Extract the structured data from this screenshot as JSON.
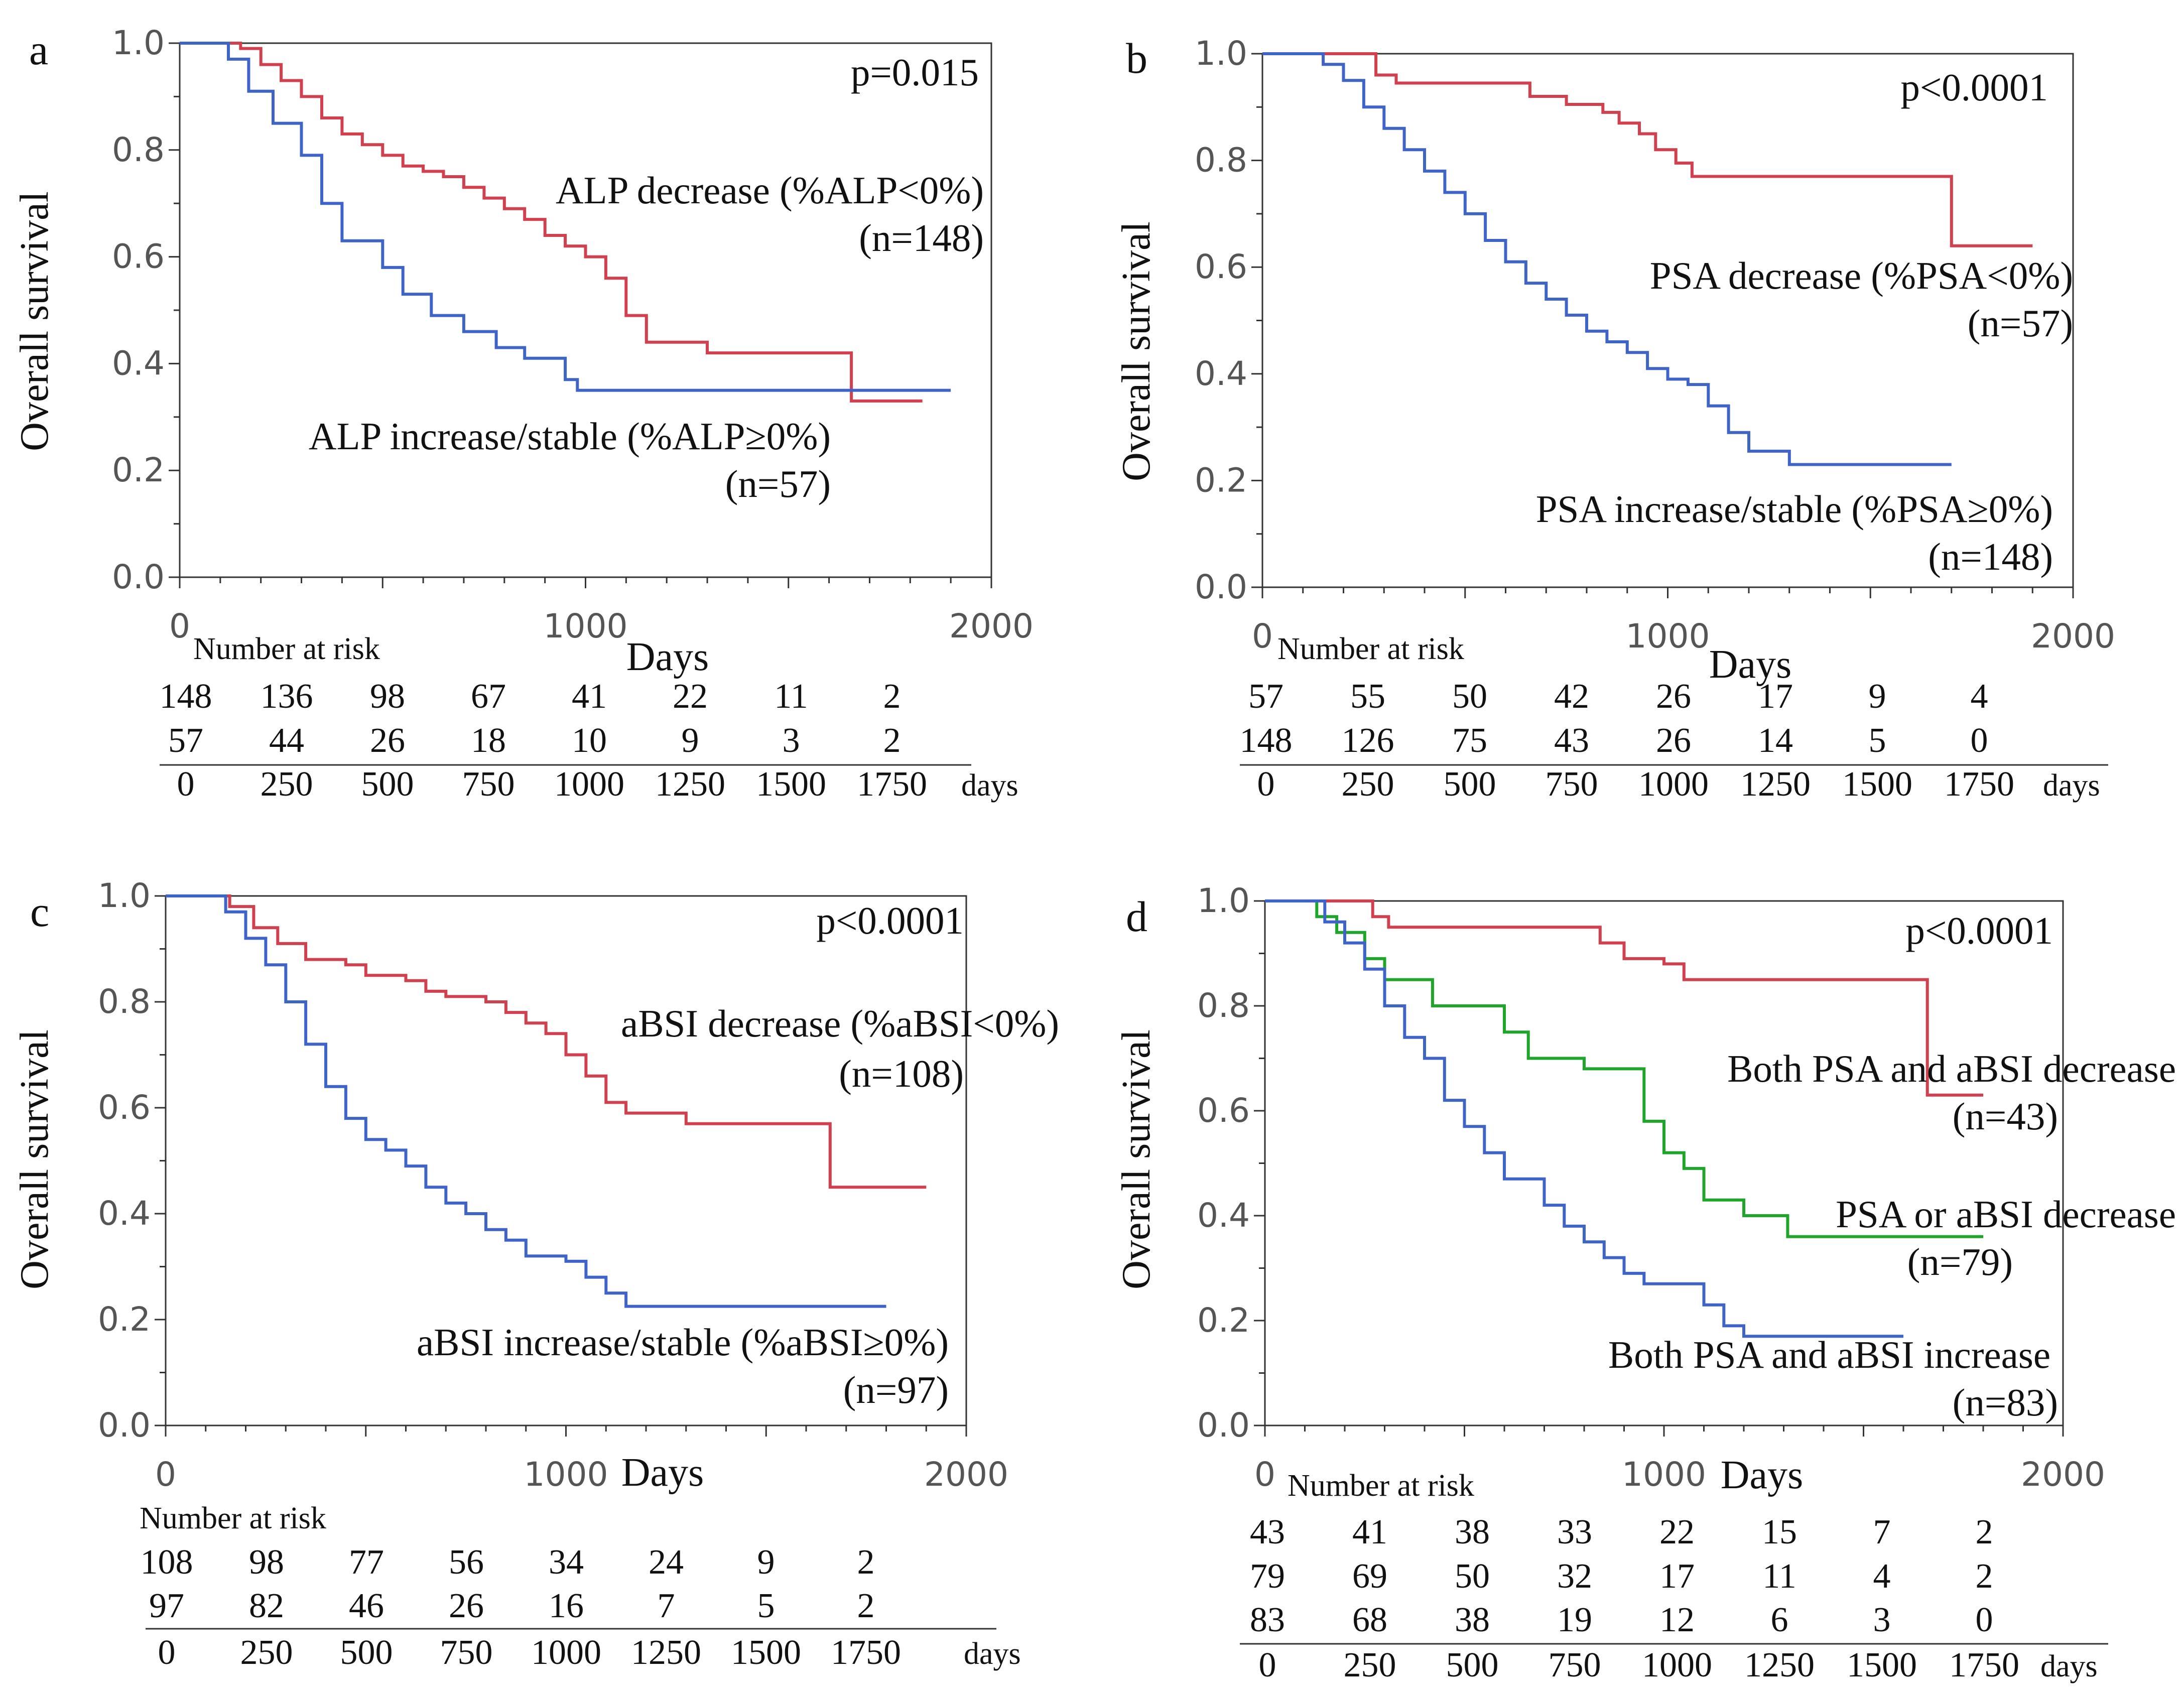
{
  "chart_data": [
    {
      "panel": "a",
      "type": "line",
      "ylabel": "Overall  survival",
      "xlabel": "Days",
      "xlim": [
        0,
        2000
      ],
      "ylim": [
        0,
        1.0
      ],
      "xticks": [
        "0",
        "1000",
        "2000"
      ],
      "yticks": [
        "0.0",
        "0.2",
        "0.4",
        "0.6",
        "0.8",
        "1.0"
      ],
      "p_value": "p=0.015",
      "series": [
        {
          "name": "ALP decrease (%ALP<0%)",
          "n_label": "(n=148)",
          "color": "#d0404e",
          "points": [
            [
              0,
              1.0
            ],
            [
              110,
              1.0
            ],
            [
              150,
              0.99
            ],
            [
              200,
              0.96
            ],
            [
              250,
              0.93
            ],
            [
              300,
              0.9
            ],
            [
              350,
              0.86
            ],
            [
              400,
              0.83
            ],
            [
              450,
              0.81
            ],
            [
              500,
              0.79
            ],
            [
              550,
              0.77
            ],
            [
              600,
              0.76
            ],
            [
              650,
              0.75
            ],
            [
              700,
              0.73
            ],
            [
              750,
              0.71
            ],
            [
              800,
              0.69
            ],
            [
              850,
              0.67
            ],
            [
              900,
              0.64
            ],
            [
              950,
              0.62
            ],
            [
              1000,
              0.6
            ],
            [
              1050,
              0.56
            ],
            [
              1100,
              0.49
            ],
            [
              1150,
              0.44
            ],
            [
              1300,
              0.42
            ],
            [
              1650,
              0.42
            ],
            [
              1655,
              0.33
            ],
            [
              1830,
              0.33
            ]
          ]
        },
        {
          "name": "ALP increase/stable  (%ALP≥0%)",
          "n_label": "(n=57)",
          "color": "#3f64c8",
          "points": [
            [
              0,
              1.0
            ],
            [
              80,
              1.0
            ],
            [
              120,
              0.97
            ],
            [
              170,
              0.91
            ],
            [
              230,
              0.85
            ],
            [
              300,
              0.79
            ],
            [
              350,
              0.7
            ],
            [
              400,
              0.63
            ],
            [
              500,
              0.58
            ],
            [
              550,
              0.53
            ],
            [
              620,
              0.49
            ],
            [
              700,
              0.46
            ],
            [
              780,
              0.43
            ],
            [
              850,
              0.41
            ],
            [
              950,
              0.37
            ],
            [
              980,
              0.35
            ],
            [
              1300,
              0.35
            ],
            [
              1900,
              0.35
            ]
          ]
        }
      ],
      "risk_table": {
        "header": "Number  at risk",
        "times": [
          "0",
          "250",
          "500",
          "750",
          "1000",
          "1250",
          "1500",
          "1750"
        ],
        "unit": "days",
        "rows": [
          [
            "148",
            "136",
            "98",
            "67",
            "41",
            "22",
            "11",
            "2"
          ],
          [
            "57",
            "44",
            "26",
            "18",
            "10",
            "9",
            "3",
            "2"
          ]
        ]
      }
    },
    {
      "panel": "b",
      "type": "line",
      "ylabel": "Overall  survival",
      "xlabel": "Days",
      "xlim": [
        0,
        2000
      ],
      "ylim": [
        0,
        1.0
      ],
      "xticks": [
        "0",
        "1000",
        "2000"
      ],
      "yticks": [
        "0.0",
        "0.2",
        "0.4",
        "0.6",
        "0.8",
        "1.0"
      ],
      "p_value": "p<0.0001",
      "series": [
        {
          "name": "PSA decrease (%PSA<0%)",
          "n_label": "(n=57)",
          "color": "#d0404e",
          "points": [
            [
              0,
              1.0
            ],
            [
              240,
              1.0
            ],
            [
              280,
              0.96
            ],
            [
              330,
              0.945
            ],
            [
              610,
              0.945
            ],
            [
              660,
              0.92
            ],
            [
              750,
              0.905
            ],
            [
              840,
              0.89
            ],
            [
              880,
              0.87
            ],
            [
              930,
              0.85
            ],
            [
              970,
              0.82
            ],
            [
              1020,
              0.795
            ],
            [
              1060,
              0.77
            ],
            [
              1690,
              0.77
            ],
            [
              1700,
              0.64
            ],
            [
              1900,
              0.64
            ]
          ]
        },
        {
          "name": "PSA increase/stable  (%PSA≥0%)",
          "n_label": "(n=148)",
          "color": "#3f64c8",
          "points": [
            [
              0,
              1.0
            ],
            [
              100,
              1.0
            ],
            [
              150,
              0.98
            ],
            [
              200,
              0.95
            ],
            [
              250,
              0.9
            ],
            [
              300,
              0.86
            ],
            [
              350,
              0.82
            ],
            [
              400,
              0.78
            ],
            [
              450,
              0.74
            ],
            [
              500,
              0.7
            ],
            [
              550,
              0.65
            ],
            [
              600,
              0.61
            ],
            [
              650,
              0.57
            ],
            [
              700,
              0.54
            ],
            [
              750,
              0.51
            ],
            [
              800,
              0.48
            ],
            [
              850,
              0.46
            ],
            [
              900,
              0.44
            ],
            [
              950,
              0.41
            ],
            [
              1000,
              0.39
            ],
            [
              1050,
              0.38
            ],
            [
              1100,
              0.34
            ],
            [
              1150,
              0.29
            ],
            [
              1200,
              0.255
            ],
            [
              1300,
              0.23
            ],
            [
              1700,
              0.23
            ]
          ]
        }
      ],
      "risk_table": {
        "header": "Number  at risk",
        "times": [
          "0",
          "250",
          "500",
          "750",
          "1000",
          "1250",
          "1500",
          "1750"
        ],
        "unit": "days",
        "rows": [
          [
            "57",
            "55",
            "50",
            "42",
            "26",
            "17",
            "9",
            "4"
          ],
          [
            "148",
            "126",
            "75",
            "43",
            "26",
            "14",
            "5",
            "0"
          ]
        ]
      }
    },
    {
      "panel": "c",
      "type": "line",
      "ylabel": "Overall  survival",
      "xlabel": "Days",
      "xlim": [
        0,
        2000
      ],
      "ylim": [
        0,
        1.0
      ],
      "xticks": [
        "0",
        "1000",
        "2000"
      ],
      "yticks": [
        "0.0",
        "0.2",
        "0.4",
        "0.6",
        "0.8",
        "1.0"
      ],
      "p_value": "p<0.0001",
      "series": [
        {
          "name": "aBSI decrease (%aBSI<0%)",
          "n_label": "(n=108)",
          "color": "#d0404e",
          "points": [
            [
              0,
              1.0
            ],
            [
              120,
              1.0
            ],
            [
              160,
              0.98
            ],
            [
              220,
              0.94
            ],
            [
              280,
              0.91
            ],
            [
              350,
              0.88
            ],
            [
              450,
              0.87
            ],
            [
              500,
              0.85
            ],
            [
              600,
              0.84
            ],
            [
              650,
              0.82
            ],
            [
              700,
              0.81
            ],
            [
              800,
              0.8
            ],
            [
              850,
              0.78
            ],
            [
              900,
              0.76
            ],
            [
              950,
              0.74
            ],
            [
              1000,
              0.7
            ],
            [
              1050,
              0.66
            ],
            [
              1100,
              0.61
            ],
            [
              1150,
              0.59
            ],
            [
              1300,
              0.57
            ],
            [
              1650,
              0.57
            ],
            [
              1660,
              0.45
            ],
            [
              1900,
              0.45
            ]
          ]
        },
        {
          "name": "aBSI increase/stable  (%aBSI≥0%)",
          "n_label": "(n=97)",
          "color": "#3f64c8",
          "points": [
            [
              0,
              1.0
            ],
            [
              100,
              1.0
            ],
            [
              150,
              0.97
            ],
            [
              200,
              0.92
            ],
            [
              250,
              0.87
            ],
            [
              300,
              0.8
            ],
            [
              350,
              0.72
            ],
            [
              400,
              0.64
            ],
            [
              450,
              0.58
            ],
            [
              500,
              0.54
            ],
            [
              550,
              0.52
            ],
            [
              600,
              0.49
            ],
            [
              650,
              0.45
            ],
            [
              700,
              0.42
            ],
            [
              750,
              0.4
            ],
            [
              800,
              0.37
            ],
            [
              850,
              0.35
            ],
            [
              900,
              0.32
            ],
            [
              1000,
              0.31
            ],
            [
              1050,
              0.28
            ],
            [
              1100,
              0.25
            ],
            [
              1150,
              0.225
            ],
            [
              1800,
              0.225
            ]
          ]
        }
      ],
      "risk_table": {
        "header": "Number  at risk",
        "times": [
          "0",
          "250",
          "500",
          "750",
          "1000",
          "1250",
          "1500",
          "1750"
        ],
        "unit": "days",
        "rows": [
          [
            "108",
            "98",
            "77",
            "56",
            "34",
            "24",
            "9",
            "2"
          ],
          [
            "97",
            "82",
            "46",
            "26",
            "16",
            "7",
            "5",
            "2"
          ]
        ]
      }
    },
    {
      "panel": "d",
      "type": "line",
      "ylabel": "Overall  survival",
      "xlabel": "Days",
      "xlim": [
        0,
        2000
      ],
      "ylim": [
        0,
        1.0
      ],
      "xticks": [
        "0",
        "1000",
        "2000"
      ],
      "yticks": [
        "0.0",
        "0.2",
        "0.4",
        "0.6",
        "0.8",
        "1.0"
      ],
      "p_value": "p<0.0001",
      "series": [
        {
          "name": "Both PSA and aBSI decrease",
          "n_label": "(n=43)",
          "color": "#d0404e",
          "points": [
            [
              0,
              1.0
            ],
            [
              240,
              1.0
            ],
            [
              270,
              0.97
            ],
            [
              310,
              0.95
            ],
            [
              800,
              0.95
            ],
            [
              840,
              0.92
            ],
            [
              900,
              0.89
            ],
            [
              1000,
              0.88
            ],
            [
              1050,
              0.85
            ],
            [
              1650,
              0.85
            ],
            [
              1660,
              0.63
            ],
            [
              1800,
              0.63
            ]
          ]
        },
        {
          "name": "PSA or aBSI decrease",
          "n_label": "(n=79)",
          "color": "#1ea52a",
          "points": [
            [
              0,
              1.0
            ],
            [
              100,
              1.0
            ],
            [
              130,
              0.97
            ],
            [
              180,
              0.94
            ],
            [
              250,
              0.89
            ],
            [
              300,
              0.85
            ],
            [
              420,
              0.8
            ],
            [
              560,
              0.8
            ],
            [
              600,
              0.75
            ],
            [
              660,
              0.7
            ],
            [
              800,
              0.68
            ],
            [
              900,
              0.68
            ],
            [
              950,
              0.58
            ],
            [
              1000,
              0.52
            ],
            [
              1050,
              0.49
            ],
            [
              1100,
              0.43
            ],
            [
              1200,
              0.4
            ],
            [
              1300,
              0.4
            ],
            [
              1310,
              0.36
            ],
            [
              1800,
              0.36
            ]
          ]
        },
        {
          "name": "Both PSA and aBSI increase",
          "n_label": "(n=83)",
          "color": "#3f64c8",
          "points": [
            [
              0,
              1.0
            ],
            [
              100,
              1.0
            ],
            [
              150,
              0.96
            ],
            [
              200,
              0.92
            ],
            [
              250,
              0.87
            ],
            [
              300,
              0.8
            ],
            [
              350,
              0.74
            ],
            [
              400,
              0.7
            ],
            [
              450,
              0.62
            ],
            [
              500,
              0.57
            ],
            [
              550,
              0.52
            ],
            [
              600,
              0.47
            ],
            [
              650,
              0.47
            ],
            [
              700,
              0.42
            ],
            [
              750,
              0.38
            ],
            [
              800,
              0.35
            ],
            [
              850,
              0.32
            ],
            [
              900,
              0.29
            ],
            [
              950,
              0.27
            ],
            [
              1050,
              0.27
            ],
            [
              1100,
              0.23
            ],
            [
              1150,
              0.19
            ],
            [
              1200,
              0.17
            ],
            [
              1600,
              0.17
            ]
          ]
        }
      ],
      "risk_table": {
        "header": "Number  at risk",
        "times": [
          "0",
          "250",
          "500",
          "750",
          "1000",
          "1250",
          "1500",
          "1750"
        ],
        "unit": "days",
        "rows": [
          [
            "43",
            "41",
            "38",
            "33",
            "22",
            "15",
            "7",
            "2"
          ],
          [
            "79",
            "69",
            "50",
            "32",
            "17",
            "11",
            "4",
            "2"
          ],
          [
            "83",
            "68",
            "38",
            "19",
            "12",
            "6",
            "3",
            "0"
          ]
        ]
      }
    }
  ]
}
